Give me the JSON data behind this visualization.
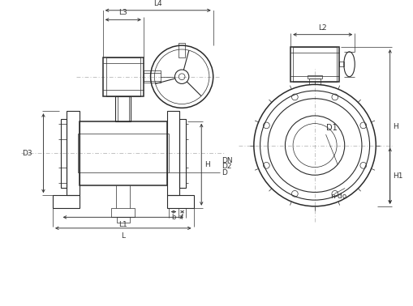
{
  "bg_color": "#ffffff",
  "line_color": "#2a2a2a",
  "dim_color": "#333333",
  "centerline_color": "#aaaaaa",
  "fig_width": 5.1,
  "fig_height": 3.78,
  "dpi": 100,
  "labels": {
    "L4": "L4",
    "L3": "L3",
    "L2": "L2",
    "L1": "L1",
    "L": "L",
    "H": "H",
    "H1": "H1",
    "D3": "D3",
    "DN": "DN",
    "D2": "D2",
    "D": "D",
    "D1": "D1",
    "b": "b",
    "f": "f",
    "n_do": "n-do"
  }
}
